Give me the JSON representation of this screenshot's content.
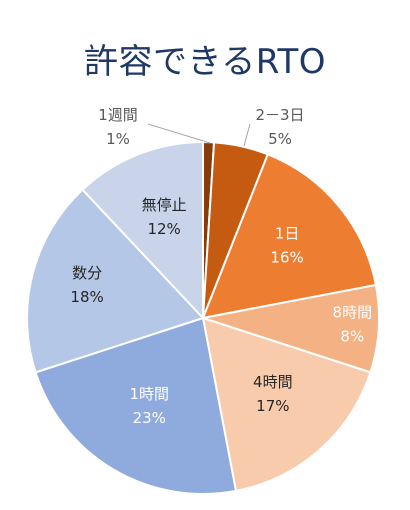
{
  "chart_data": {
    "type": "pie",
    "title": "許容できるRTO",
    "start": "top",
    "direction": "clockwise",
    "slices": [
      {
        "label": "1週間",
        "value": 1,
        "pct_label": "1%",
        "color": "#843c0c",
        "text_color": "#595959"
      },
      {
        "label": "2－3日",
        "value": 5,
        "pct_label": "5%",
        "color": "#c55a11",
        "text_color": "#595959"
      },
      {
        "label": "1日",
        "value": 16,
        "pct_label": "16%",
        "color": "#ed7d31",
        "text_color": "#ffffff"
      },
      {
        "label": "8時間",
        "value": 8,
        "pct_label": "8%",
        "color": "#f4b183",
        "text_color": "#ffffff"
      },
      {
        "label": "4時間",
        "value": 17,
        "pct_label": "17%",
        "color": "#f8cbad",
        "text_color": "#262626"
      },
      {
        "label": "1時間",
        "value": 23,
        "pct_label": "23%",
        "color": "#8faadc",
        "text_color": "#ffffff"
      },
      {
        "label": "数分",
        "value": 18,
        "pct_label": "18%",
        "color": "#b4c7e7",
        "text_color": "#262626"
      },
      {
        "label": "無停止",
        "value": 12,
        "pct_label": "12%",
        "color": "#c9d3ea",
        "text_color": "#262626"
      }
    ]
  }
}
